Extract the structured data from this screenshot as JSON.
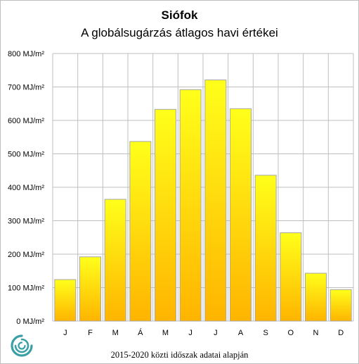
{
  "chart_data": {
    "type": "bar",
    "title": "Siófok",
    "subtitle": "A globálsugárzás átlagos havi értékei",
    "footnote": "2015-2020  közti időszak adatai alapján",
    "categories": [
      "J",
      "F",
      "M",
      "Á",
      "M",
      "J",
      "J",
      "A",
      "S",
      "O",
      "N",
      "D"
    ],
    "values": [
      124,
      192,
      364,
      537,
      633,
      692,
      721,
      635,
      436,
      264,
      143,
      94
    ],
    "ylim": [
      0,
      800
    ],
    "yticks": [
      0,
      100,
      200,
      300,
      400,
      500,
      600,
      700,
      800
    ],
    "ytick_labels": [
      "0 MJ/m²",
      "100 MJ/m²",
      "200 MJ/m²",
      "300 MJ/m²",
      "400 MJ/m²",
      "500 MJ/m²",
      "600 MJ/m²",
      "700 MJ/m²",
      "800 MJ/m²"
    ],
    "grid": true,
    "bar_color_top": "#ffff1a",
    "bar_color_bottom": "#ffb400",
    "grid_color": "#bfbfbf",
    "bar_edge_color": "#a6a6a6"
  },
  "logo": {
    "icon": "swirl-logo-icon",
    "color": "#3aa0a6"
  }
}
